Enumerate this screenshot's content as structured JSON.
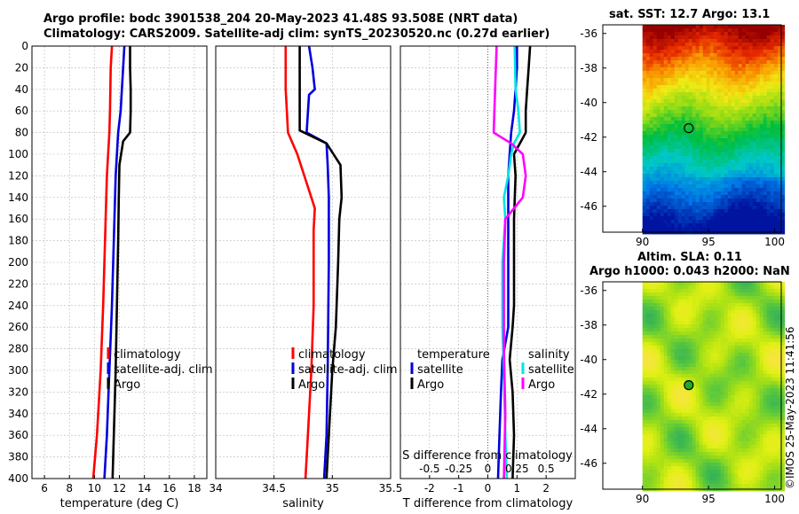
{
  "titles": {
    "line1": "Argo profile: bodc 3901538_204 20-May-2023 41.48S 93.508E (NRT data)",
    "line2": "Climatology: CARS2009. Satellite-adj clim: synTS_20230520.nc (0.27d earlier)",
    "sst": "sat. SST: 12.7 Argo: 13.1",
    "sla1": "Altim. SLA: 0.11",
    "sla2": "Argo h1000: 0.043 h2000: NaN"
  },
  "credit": "©IMOS 25-May-2023 11:41:56",
  "colors": {
    "clim": "#ff0000",
    "sat": "#0000dd",
    "argo": "#000000",
    "s_sat": "#00e5e5",
    "s_argo": "#ff00ff"
  },
  "chart_data": [
    {
      "type": "line",
      "name": "temperature",
      "xlabel": "temperature (deg C)",
      "xlim": [
        5,
        19
      ],
      "ylim": [
        0,
        400
      ],
      "xticks": [
        "6",
        "8",
        "10",
        "12",
        "14",
        "16",
        "18"
      ],
      "xtick_values": [
        6,
        8,
        10,
        12,
        14,
        16,
        18
      ],
      "yticks": [
        "0",
        "20",
        "40",
        "60",
        "80",
        "100",
        "120",
        "140",
        "160",
        "180",
        "200",
        "220",
        "240",
        "260",
        "280",
        "300",
        "320",
        "340",
        "360",
        "380",
        "400"
      ],
      "legend": [
        "climatology",
        "satellite-adj. clim",
        "Argo"
      ],
      "series": [
        {
          "name": "climatology",
          "color": "#ff0000",
          "points": [
            [
              11.4,
              0
            ],
            [
              11.3,
              20
            ],
            [
              11.25,
              60
            ],
            [
              11.2,
              80
            ],
            [
              11.0,
              120
            ],
            [
              10.9,
              160
            ],
            [
              10.7,
              240
            ],
            [
              10.5,
              300
            ],
            [
              10.2,
              360
            ],
            [
              9.9,
              400
            ]
          ]
        },
        {
          "name": "satellite-adj. clim",
          "color": "#0000dd",
          "points": [
            [
              12.4,
              0
            ],
            [
              12.3,
              20
            ],
            [
              12.2,
              40
            ],
            [
              12.1,
              60
            ],
            [
              11.9,
              80
            ],
            [
              11.7,
              120
            ],
            [
              11.6,
              160
            ],
            [
              11.4,
              240
            ],
            [
              11.2,
              300
            ],
            [
              11.0,
              360
            ],
            [
              10.8,
              400
            ]
          ]
        },
        {
          "name": "Argo",
          "color": "#000000",
          "points": [
            [
              12.85,
              0
            ],
            [
              12.85,
              20
            ],
            [
              12.9,
              40
            ],
            [
              12.9,
              60
            ],
            [
              12.85,
              80
            ],
            [
              12.3,
              88
            ],
            [
              12.0,
              110
            ],
            [
              11.95,
              140
            ],
            [
              11.9,
              180
            ],
            [
              11.8,
              240
            ],
            [
              11.7,
              300
            ],
            [
              11.55,
              360
            ],
            [
              11.45,
              400
            ]
          ]
        }
      ]
    },
    {
      "type": "line",
      "name": "salinity",
      "xlabel": "salinity",
      "xlim": [
        34,
        35.5
      ],
      "ylim": [
        0,
        400
      ],
      "xticks": [
        "34",
        "34.5",
        "35",
        "35.5"
      ],
      "xtick_values": [
        34,
        34.5,
        35,
        35.5
      ],
      "legend": [
        "climatology",
        "satellite-adj. clim",
        "Argo"
      ],
      "series": [
        {
          "name": "climatology",
          "color": "#ff0000",
          "points": [
            [
              34.6,
              0
            ],
            [
              34.6,
              40
            ],
            [
              34.61,
              60
            ],
            [
              34.62,
              80
            ],
            [
              34.7,
              100
            ],
            [
              34.76,
              120
            ],
            [
              34.82,
              140
            ],
            [
              34.85,
              150
            ],
            [
              34.84,
              170
            ],
            [
              34.84,
              240
            ],
            [
              34.82,
              300
            ],
            [
              34.79,
              360
            ],
            [
              34.77,
              400
            ]
          ]
        },
        {
          "name": "satellite-adj. clim",
          "color": "#0000dd",
          "points": [
            [
              34.8,
              0
            ],
            [
              34.83,
              20
            ],
            [
              34.85,
              40
            ],
            [
              34.8,
              45
            ],
            [
              34.78,
              80
            ],
            [
              34.95,
              90
            ],
            [
              34.96,
              110
            ],
            [
              34.97,
              140
            ],
            [
              34.97,
              200
            ],
            [
              34.96,
              300
            ],
            [
              34.95,
              360
            ],
            [
              34.93,
              400
            ]
          ]
        },
        {
          "name": "Argo",
          "color": "#000000",
          "points": [
            [
              34.72,
              0
            ],
            [
              34.72,
              20
            ],
            [
              34.72,
              60
            ],
            [
              34.72,
              78
            ],
            [
              34.95,
              90
            ],
            [
              35.07,
              110
            ],
            [
              35.08,
              140
            ],
            [
              35.06,
              160
            ],
            [
              35.05,
              200
            ],
            [
              35.03,
              260
            ],
            [
              35.0,
              300
            ],
            [
              34.97,
              360
            ],
            [
              34.95,
              400
            ]
          ]
        }
      ]
    },
    {
      "type": "line",
      "name": "difference",
      "xlabel": "T difference from climatology",
      "xlabel_top": "S difference from climatology",
      "xlim": [
        -3,
        3
      ],
      "ylim": [
        0,
        400
      ],
      "xticks": [
        "-2",
        "-1",
        "0",
        "1",
        "2"
      ],
      "xtick_values": [
        -2,
        -1,
        0,
        1,
        2
      ],
      "s_xticks": [
        "-0.5",
        "-0.25",
        "0",
        "0.25",
        "0.5"
      ],
      "s_xtick_values": [
        -0.5,
        -0.25,
        0,
        0.25,
        0.5
      ],
      "s_scale": 4,
      "legend_t_title": "temperature",
      "legend_s_title": "salinity",
      "legend": [
        "satellite",
        "Argo",
        "satellite",
        "Argo"
      ],
      "series": [
        {
          "name": "T satellite",
          "color": "#0000dd",
          "points": [
            [
              1.0,
              0
            ],
            [
              1.0,
              20
            ],
            [
              0.95,
              40
            ],
            [
              0.9,
              60
            ],
            [
              0.8,
              80
            ],
            [
              0.75,
              100
            ],
            [
              0.7,
              120
            ],
            [
              0.7,
              160
            ],
            [
              0.7,
              240
            ],
            [
              0.7,
              260
            ],
            [
              0.5,
              290
            ],
            [
              0.45,
              320
            ],
            [
              0.4,
              360
            ],
            [
              0.35,
              400
            ]
          ]
        },
        {
          "name": "T Argo",
          "color": "#000000",
          "points": [
            [
              1.45,
              0
            ],
            [
              1.4,
              20
            ],
            [
              1.35,
              40
            ],
            [
              1.3,
              60
            ],
            [
              1.3,
              80
            ],
            [
              0.9,
              100
            ],
            [
              0.95,
              120
            ],
            [
              0.9,
              160
            ],
            [
              0.9,
              240
            ],
            [
              0.85,
              260
            ],
            [
              0.75,
              290
            ],
            [
              0.85,
              320
            ],
            [
              0.9,
              360
            ],
            [
              0.85,
              400
            ]
          ]
        },
        {
          "name": "S satellite",
          "color": "#00e5e5",
          "points": [
            [
              0.92,
              0
            ],
            [
              0.95,
              40
            ],
            [
              1.05,
              60
            ],
            [
              1.1,
              80
            ],
            [
              0.9,
              90
            ],
            [
              0.8,
              100
            ],
            [
              0.7,
              120
            ],
            [
              0.55,
              140
            ],
            [
              0.6,
              160
            ],
            [
              0.5,
              200
            ],
            [
              0.5,
              260
            ],
            [
              0.55,
              300
            ],
            [
              0.6,
              360
            ],
            [
              0.65,
              400
            ]
          ]
        },
        {
          "name": "S Argo",
          "color": "#ff00ff",
          "points": [
            [
              0.3,
              0
            ],
            [
              0.25,
              40
            ],
            [
              0.2,
              80
            ],
            [
              0.8,
              90
            ],
            [
              1.2,
              100
            ],
            [
              1.3,
              120
            ],
            [
              1.2,
              140
            ],
            [
              0.9,
              150
            ],
            [
              0.6,
              160
            ],
            [
              0.55,
              200
            ],
            [
              0.55,
              280
            ],
            [
              0.6,
              340
            ],
            [
              0.55,
              400
            ]
          ]
        }
      ]
    },
    {
      "type": "heatmap",
      "name": "sst_map",
      "title": "sat. SST: 12.7 Argo: 13.1",
      "xlim": [
        87,
        100.5
      ],
      "ylim": [
        -47.5,
        -35.5
      ],
      "xticks": [
        "90",
        "95",
        "100"
      ],
      "xtick_values": [
        90,
        95,
        100
      ],
      "yticks": [
        "-36",
        "-38",
        "-40",
        "-42",
        "-44",
        "-46"
      ],
      "ytick_values": [
        -36,
        -38,
        -40,
        -42,
        -44,
        -46
      ],
      "data_extent_lon": [
        90,
        100.5
      ],
      "marker": {
        "lon": 93.5,
        "lat": -41.48
      }
    },
    {
      "type": "heatmap",
      "name": "sla_map",
      "title": "Altim. SLA: 0.11 / Argo h1000: 0.043 h2000: NaN",
      "xlim": [
        87,
        100.5
      ],
      "ylim": [
        -47.5,
        -35.5
      ],
      "xticks": [
        "90",
        "95",
        "100"
      ],
      "xtick_values": [
        90,
        95,
        100
      ],
      "yticks": [
        "-36",
        "-38",
        "-40",
        "-42",
        "-44",
        "-46"
      ],
      "ytick_values": [
        -36,
        -38,
        -40,
        -42,
        -44,
        -46
      ],
      "data_extent_lon": [
        90,
        100.5
      ],
      "marker": {
        "lon": 93.5,
        "lat": -41.48
      }
    }
  ]
}
